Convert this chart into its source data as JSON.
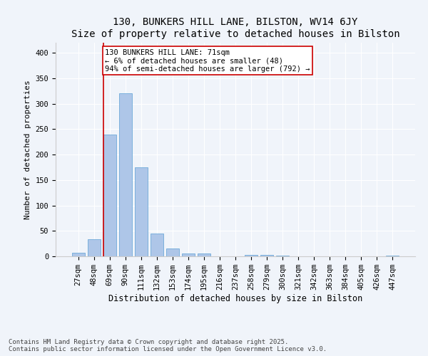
{
  "title": "130, BUNKERS HILL LANE, BILSTON, WV14 6JY",
  "subtitle": "Size of property relative to detached houses in Bilston",
  "xlabel": "Distribution of detached houses by size in Bilston",
  "ylabel": "Number of detached properties",
  "bar_color": "#aec6e8",
  "bar_edge_color": "#5a9fd4",
  "background_color": "#f0f4fa",
  "grid_color": "#ffffff",
  "categories": [
    "27sqm",
    "48sqm",
    "69sqm",
    "90sqm",
    "111sqm",
    "132sqm",
    "153sqm",
    "174sqm",
    "195sqm",
    "216sqm",
    "237sqm",
    "258sqm",
    "279sqm",
    "300sqm",
    "321sqm",
    "342sqm",
    "363sqm",
    "384sqm",
    "405sqm",
    "426sqm",
    "447sqm"
  ],
  "values": [
    7,
    33,
    240,
    320,
    175,
    45,
    15,
    5,
    5,
    0,
    0,
    3,
    3,
    1,
    0,
    0,
    0,
    0,
    0,
    0,
    1
  ],
  "vline_x_index": 2,
  "vline_color": "#cc0000",
  "annotation_text": "130 BUNKERS HILL LANE: 71sqm\n← 6% of detached houses are smaller (48)\n94% of semi-detached houses are larger (792) →",
  "annotation_box_color": "#ffffff",
  "annotation_box_edge_color": "#cc0000",
  "ylim": [
    0,
    420
  ],
  "yticks": [
    0,
    50,
    100,
    150,
    200,
    250,
    300,
    350,
    400
  ],
  "footnote": "Contains HM Land Registry data © Crown copyright and database right 2025.\nContains public sector information licensed under the Open Government Licence v3.0.",
  "title_fontsize": 10,
  "annotation_fontsize": 7.5,
  "tick_fontsize": 7.5,
  "ylabel_fontsize": 8,
  "xlabel_fontsize": 8.5,
  "footnote_fontsize": 6.5
}
